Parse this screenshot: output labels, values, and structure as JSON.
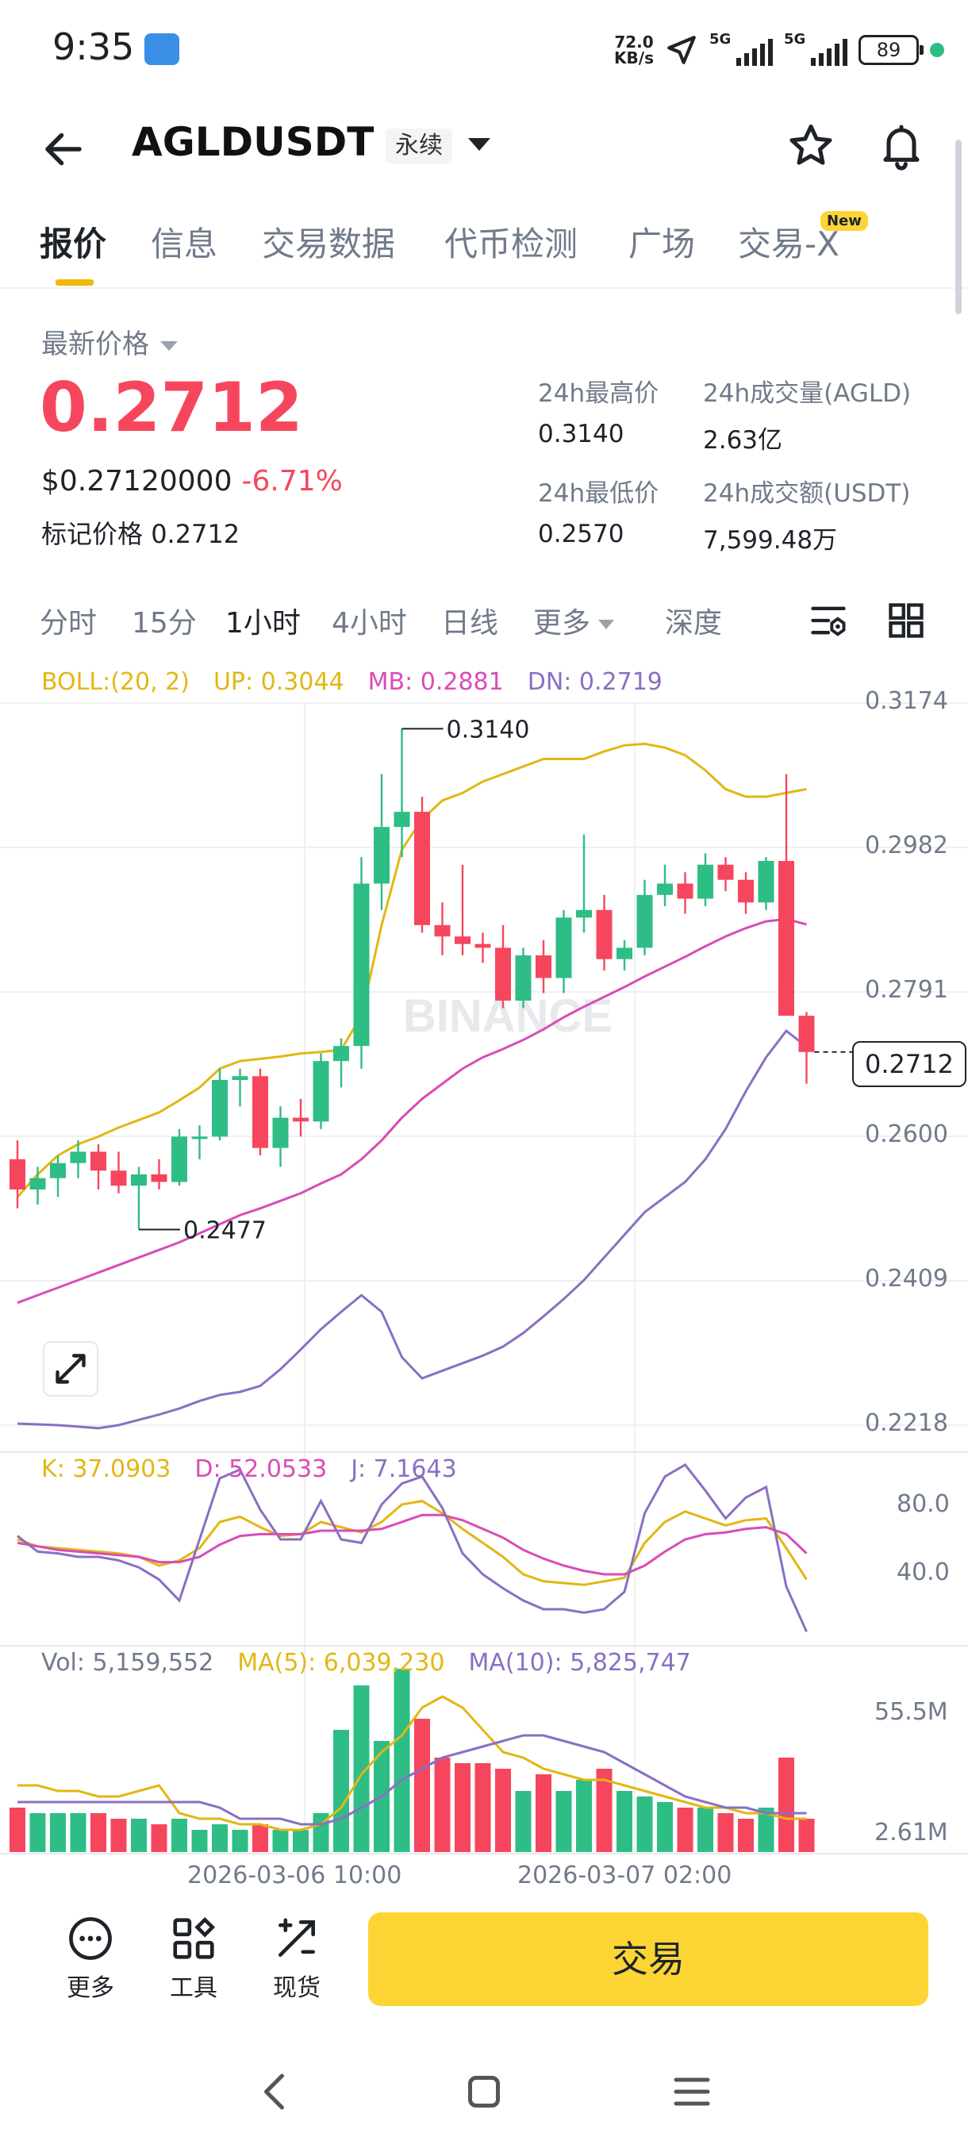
{
  "status_bar": {
    "time": "9:35",
    "net_speed_value": "72.0",
    "net_speed_unit": "KB/s",
    "sim1_label": "5G",
    "sim2_label": "5G",
    "battery": "89"
  },
  "header": {
    "symbol": "AGLDUSDT",
    "contract_type": "永续"
  },
  "tabs": [
    {
      "label": "报价",
      "active": true
    },
    {
      "label": "信息"
    },
    {
      "label": "交易数据"
    },
    {
      "label": "代币检测"
    },
    {
      "label": "广场"
    },
    {
      "label": "交易-X",
      "badge": "New"
    }
  ],
  "price": {
    "latest_label": "最新价格",
    "last_price": "0.2712",
    "usd_price": "$0.27120000",
    "change_pct": "-6.71%",
    "mark_label": "标记价格",
    "mark_price": "0.2712"
  },
  "stats": {
    "high_label": "24h最高价",
    "high": "0.3140",
    "low_label": "24h最低价",
    "low": "0.2570",
    "vol_label": "24h成交量(AGLD)",
    "vol": "2.63亿",
    "turnover_label": "24h成交额(USDT)",
    "turnover": "7,599.48万"
  },
  "intervals": {
    "items": [
      "分时",
      "15分",
      "1小时",
      "4小时",
      "日线",
      "更多",
      "深度"
    ],
    "active": "1小时"
  },
  "indicators": {
    "boll": {
      "label": "BOLL:(20, 2)",
      "up": "UP: 0.3044",
      "mb": "MB: 0.2881",
      "dn": "DN: 0.2719"
    },
    "kdj": {
      "k": "K: 37.0903",
      "d": "D: 52.0533",
      "j": "J: 7.1643"
    },
    "vol": {
      "vol": "Vol: 5,159,552",
      "ma5": "MA(5): 6,039,230",
      "ma10": "MA(10): 5,825,747"
    }
  },
  "chart_data": {
    "type": "candlestick",
    "interval": "1小时",
    "price_axis_ticks": [
      "0.3174",
      "0.2982",
      "0.2791",
      "0.2600",
      "0.2409",
      "0.2218"
    ],
    "kdj_axis_ticks": [
      "80.0",
      "40.0"
    ],
    "vol_axis_ticks": [
      "55.5M",
      "2.61M"
    ],
    "x_ticks": [
      "2026-03-06 10:00",
      "2026-03-07 02:00"
    ],
    "current_price_tag": "0.2712",
    "high_marker": "0.3140",
    "low_marker": "0.2477",
    "watermark": "BINANCE",
    "candles": [
      {
        "o": 0.257,
        "h": 0.2595,
        "l": 0.2505,
        "c": 0.253
      },
      {
        "o": 0.253,
        "h": 0.256,
        "l": 0.251,
        "c": 0.2545
      },
      {
        "o": 0.2545,
        "h": 0.2575,
        "l": 0.252,
        "c": 0.2565
      },
      {
        "o": 0.2565,
        "h": 0.2595,
        "l": 0.2545,
        "c": 0.258
      },
      {
        "o": 0.258,
        "h": 0.259,
        "l": 0.253,
        "c": 0.2555
      },
      {
        "o": 0.2555,
        "h": 0.258,
        "l": 0.2525,
        "c": 0.2535
      },
      {
        "o": 0.2535,
        "h": 0.256,
        "l": 0.2477,
        "c": 0.255
      },
      {
        "o": 0.255,
        "h": 0.257,
        "l": 0.253,
        "c": 0.254
      },
      {
        "o": 0.254,
        "h": 0.261,
        "l": 0.2535,
        "c": 0.26
      },
      {
        "o": 0.26,
        "h": 0.2615,
        "l": 0.257,
        "c": 0.26
      },
      {
        "o": 0.26,
        "h": 0.269,
        "l": 0.2595,
        "c": 0.2675
      },
      {
        "o": 0.2675,
        "h": 0.269,
        "l": 0.264,
        "c": 0.268
      },
      {
        "o": 0.268,
        "h": 0.269,
        "l": 0.2575,
        "c": 0.2585
      },
      {
        "o": 0.2585,
        "h": 0.264,
        "l": 0.256,
        "c": 0.2625
      },
      {
        "o": 0.2625,
        "h": 0.265,
        "l": 0.26,
        "c": 0.262
      },
      {
        "o": 0.262,
        "h": 0.271,
        "l": 0.261,
        "c": 0.27
      },
      {
        "o": 0.27,
        "h": 0.273,
        "l": 0.2665,
        "c": 0.272
      },
      {
        "o": 0.272,
        "h": 0.297,
        "l": 0.269,
        "c": 0.2935
      },
      {
        "o": 0.2935,
        "h": 0.308,
        "l": 0.29,
        "c": 0.301
      },
      {
        "o": 0.301,
        "h": 0.314,
        "l": 0.297,
        "c": 0.303
      },
      {
        "o": 0.303,
        "h": 0.305,
        "l": 0.287,
        "c": 0.288
      },
      {
        "o": 0.288,
        "h": 0.291,
        "l": 0.284,
        "c": 0.2865
      },
      {
        "o": 0.2865,
        "h": 0.296,
        "l": 0.284,
        "c": 0.2855
      },
      {
        "o": 0.2855,
        "h": 0.287,
        "l": 0.283,
        "c": 0.285
      },
      {
        "o": 0.285,
        "h": 0.288,
        "l": 0.277,
        "c": 0.278
      },
      {
        "o": 0.278,
        "h": 0.285,
        "l": 0.277,
        "c": 0.284
      },
      {
        "o": 0.284,
        "h": 0.286,
        "l": 0.279,
        "c": 0.281
      },
      {
        "o": 0.281,
        "h": 0.29,
        "l": 0.279,
        "c": 0.289
      },
      {
        "o": 0.289,
        "h": 0.3,
        "l": 0.287,
        "c": 0.29
      },
      {
        "o": 0.29,
        "h": 0.292,
        "l": 0.282,
        "c": 0.2835
      },
      {
        "o": 0.2835,
        "h": 0.286,
        "l": 0.282,
        "c": 0.285
      },
      {
        "o": 0.285,
        "h": 0.294,
        "l": 0.284,
        "c": 0.292
      },
      {
        "o": 0.292,
        "h": 0.296,
        "l": 0.2905,
        "c": 0.2935
      },
      {
        "o": 0.2935,
        "h": 0.295,
        "l": 0.2895,
        "c": 0.2915
      },
      {
        "o": 0.2915,
        "h": 0.2975,
        "l": 0.2905,
        "c": 0.296
      },
      {
        "o": 0.296,
        "h": 0.297,
        "l": 0.2925,
        "c": 0.294
      },
      {
        "o": 0.294,
        "h": 0.295,
        "l": 0.2895,
        "c": 0.291
      },
      {
        "o": 0.291,
        "h": 0.297,
        "l": 0.29,
        "c": 0.2965
      },
      {
        "o": 0.2965,
        "h": 0.308,
        "l": 0.276,
        "c": 0.276
      },
      {
        "o": 0.276,
        "h": 0.2765,
        "l": 0.267,
        "c": 0.2712
      }
    ],
    "boll_up": [
      0.252,
      0.255,
      0.2575,
      0.259,
      0.26,
      0.2612,
      0.2622,
      0.2632,
      0.2648,
      0.2665,
      0.269,
      0.27,
      0.2703,
      0.2706,
      0.271,
      0.2712,
      0.2715,
      0.276,
      0.288,
      0.298,
      0.302,
      0.3045,
      0.3055,
      0.307,
      0.308,
      0.309,
      0.31,
      0.31,
      0.31,
      0.311,
      0.3118,
      0.312,
      0.3115,
      0.3105,
      0.3085,
      0.306,
      0.305,
      0.305,
      0.3055,
      0.306
    ],
    "boll_mb": [
      0.238,
      0.239,
      0.24,
      0.241,
      0.242,
      0.243,
      0.244,
      0.245,
      0.246,
      0.2472,
      0.2484,
      0.2496,
      0.2505,
      0.2515,
      0.2525,
      0.2538,
      0.255,
      0.257,
      0.2595,
      0.2625,
      0.265,
      0.267,
      0.269,
      0.2705,
      0.2716,
      0.2728,
      0.2742,
      0.2758,
      0.2772,
      0.2785,
      0.2798,
      0.2812,
      0.2825,
      0.2838,
      0.2852,
      0.2865,
      0.2876,
      0.2885,
      0.2888,
      0.2881
    ],
    "boll_dn": [
      0.222,
      0.2219,
      0.2218,
      0.2216,
      0.2214,
      0.2218,
      0.2225,
      0.2232,
      0.224,
      0.225,
      0.2258,
      0.2262,
      0.227,
      0.2292,
      0.2318,
      0.2345,
      0.2368,
      0.239,
      0.2368,
      0.2308,
      0.228,
      0.229,
      0.23,
      0.231,
      0.2322,
      0.234,
      0.2362,
      0.2385,
      0.241,
      0.244,
      0.247,
      0.25,
      0.252,
      0.254,
      0.257,
      0.261,
      0.266,
      0.2705,
      0.274,
      0.2719
    ],
    "kdj_k": [
      60,
      56,
      55,
      54,
      53,
      52,
      50,
      45,
      48,
      55,
      70,
      73,
      67,
      62,
      63,
      70,
      67,
      64,
      70,
      80,
      82,
      75,
      66,
      58,
      50,
      40,
      36,
      35,
      34,
      36,
      38,
      58,
      70,
      76,
      72,
      68,
      71,
      72,
      55,
      37.09
    ],
    "kdj_d": [
      58,
      56,
      54,
      53,
      52,
      51,
      50,
      47,
      47,
      50,
      57,
      62,
      63,
      63,
      63,
      65,
      65,
      65,
      66,
      70,
      74,
      74,
      71,
      66,
      61,
      54,
      49,
      45,
      42,
      40,
      40,
      45,
      53,
      60,
      63,
      64,
      66,
      67,
      63,
      52.05
    ],
    "kdj_j": [
      62,
      53,
      52,
      50,
      50,
      48,
      44,
      37,
      25,
      60,
      95,
      100,
      77,
      60,
      60,
      82,
      60,
      58,
      80,
      92,
      96,
      78,
      52,
      40,
      32,
      25,
      20,
      20,
      18,
      20,
      30,
      75,
      96,
      103,
      88,
      72,
      84,
      90,
      33,
      7.16
    ],
    "volume": [
      {
        "v": 8,
        "up": false
      },
      {
        "v": 7,
        "up": true
      },
      {
        "v": 7,
        "up": true
      },
      {
        "v": 7,
        "up": true
      },
      {
        "v": 7,
        "up": false
      },
      {
        "v": 6,
        "up": false
      },
      {
        "v": 6,
        "up": true
      },
      {
        "v": 5,
        "up": false
      },
      {
        "v": 6,
        "up": true
      },
      {
        "v": 4,
        "up": true
      },
      {
        "v": 5,
        "up": true
      },
      {
        "v": 4,
        "up": true
      },
      {
        "v": 5,
        "up": false
      },
      {
        "v": 4,
        "up": true
      },
      {
        "v": 4,
        "up": true
      },
      {
        "v": 7,
        "up": true
      },
      {
        "v": 22,
        "up": true
      },
      {
        "v": 30,
        "up": true
      },
      {
        "v": 20,
        "up": true
      },
      {
        "v": 33,
        "up": true
      },
      {
        "v": 24,
        "up": false
      },
      {
        "v": 17,
        "up": false
      },
      {
        "v": 16,
        "up": false
      },
      {
        "v": 16,
        "up": false
      },
      {
        "v": 15,
        "up": false
      },
      {
        "v": 11,
        "up": true
      },
      {
        "v": 14,
        "up": false
      },
      {
        "v": 11,
        "up": true
      },
      {
        "v": 13,
        "up": true
      },
      {
        "v": 15,
        "up": false
      },
      {
        "v": 11,
        "up": true
      },
      {
        "v": 10,
        "up": true
      },
      {
        "v": 9,
        "up": true
      },
      {
        "v": 8,
        "up": false
      },
      {
        "v": 8,
        "up": true
      },
      {
        "v": 7,
        "up": false
      },
      {
        "v": 6,
        "up": false
      },
      {
        "v": 8,
        "up": true
      },
      {
        "v": 17,
        "up": false
      },
      {
        "v": 6,
        "up": false
      }
    ],
    "vol_ma5": [
      12,
      12,
      11,
      11,
      10,
      10,
      11,
      12,
      7,
      6,
      6,
      5,
      5,
      4,
      4,
      5,
      8,
      14,
      18,
      21,
      26,
      28,
      26,
      22,
      18,
      17,
      15,
      14,
      13,
      13,
      12,
      11,
      10,
      9,
      8,
      8,
      7,
      7,
      6,
      6
    ],
    "vol_ma10": [
      9,
      9,
      9,
      9,
      9,
      9,
      9,
      9,
      9,
      9,
      8,
      6,
      6,
      6,
      5,
      5,
      6,
      8,
      10,
      13,
      15,
      17,
      18,
      19,
      20,
      21,
      21,
      20,
      19,
      18,
      16,
      14,
      12,
      10,
      9,
      8,
      8,
      7,
      7,
      7
    ],
    "colors": {
      "up": "#2ebd85",
      "down": "#f6465d",
      "boll_up": "#e2b714",
      "boll_mb": "#d94cb6",
      "boll_dn": "#8a6fc2"
    }
  },
  "bottom_actions": {
    "more": "更多",
    "tools": "工具",
    "spot": "现货",
    "trade": "交易"
  }
}
